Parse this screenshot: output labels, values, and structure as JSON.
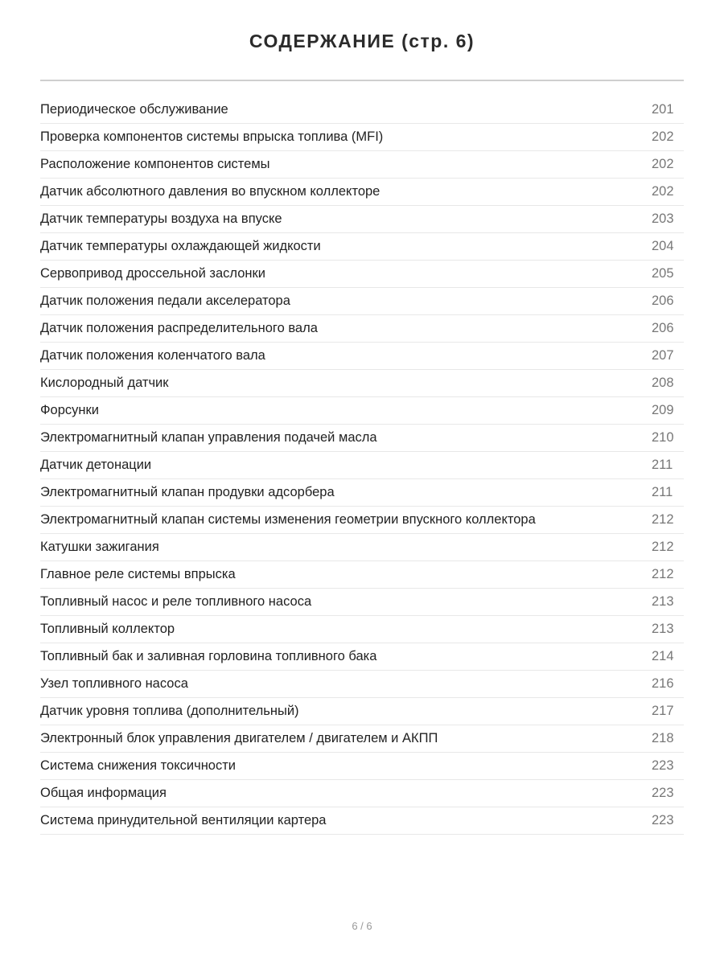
{
  "title": "СОДЕРЖАНИЕ (стр. 6)",
  "entries": [
    {
      "title": "Периодическое обслуживание",
      "page": "201"
    },
    {
      "title": "Проверка компонентов системы впрыска топлива (MFI)",
      "page": "202"
    },
    {
      "title": "Расположение компонентов системы",
      "page": "202"
    },
    {
      "title": "Датчик абсолютного давления во впускном коллекторе",
      "page": "202"
    },
    {
      "title": "Датчик температуры воздуха на впуске",
      "page": "203"
    },
    {
      "title": "Датчик температуры охлаждающей жидкости",
      "page": "204"
    },
    {
      "title": "Сервопривод дроссельной заслонки",
      "page": "205"
    },
    {
      "title": "Датчик положения педали акселератора",
      "page": "206"
    },
    {
      "title": "Датчик положения распределительного вала",
      "page": "206"
    },
    {
      "title": "Датчик положения коленчатого вала",
      "page": "207"
    },
    {
      "title": "Кислородный датчик",
      "page": "208"
    },
    {
      "title": "Форсунки",
      "page": "209"
    },
    {
      "title": "Электромагнитный клапан управления подачей масла",
      "page": "210"
    },
    {
      "title": "Датчик детонации",
      "page": "211"
    },
    {
      "title": "Электромагнитный клапан продувки адсорбера",
      "page": "211"
    },
    {
      "title": "Электромагнитный клапан системы изменения геометрии впускного коллектора",
      "page": "212"
    },
    {
      "title": "Катушки зажигания",
      "page": "212"
    },
    {
      "title": "Главное реле системы впрыска",
      "page": "212"
    },
    {
      "title": "Топливный насос и реле топливного насоса",
      "page": "213"
    },
    {
      "title": "Топливный коллектор",
      "page": "213"
    },
    {
      "title": "Топливный бак и заливная горловина топливного бака",
      "page": "214"
    },
    {
      "title": "Узел топливного насоса",
      "page": "216"
    },
    {
      "title": "Датчик уровня топлива (дополнительный)",
      "page": "217"
    },
    {
      "title": "Электронный блок управления двигателем / двигателем и АКПП",
      "page": "218"
    },
    {
      "title": "Система снижения токсичности",
      "page": "223"
    },
    {
      "title": "Общая информация",
      "page": "223"
    },
    {
      "title": "Система принудительной вентиляции картера",
      "page": "223"
    }
  ],
  "footer": "6 / 6"
}
